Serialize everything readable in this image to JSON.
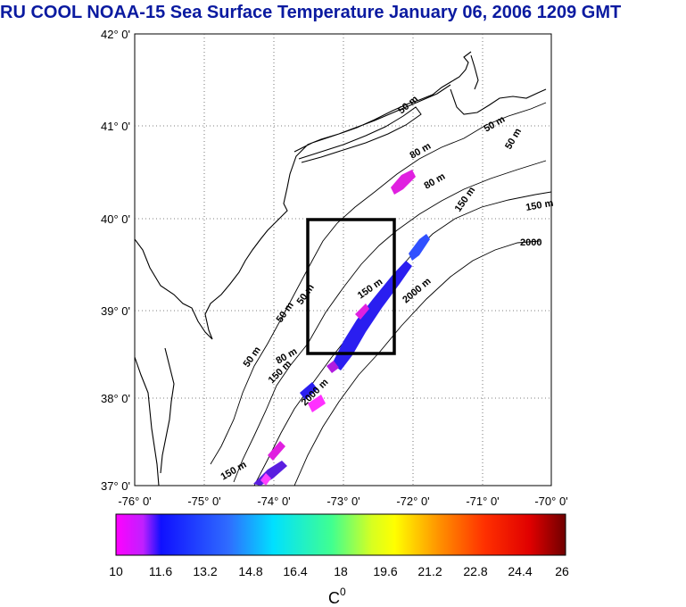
{
  "title": "RU COOL  NOAA-15 Sea Surface Temperature January 06, 2006 1209 GMT",
  "map": {
    "lat_labels": [
      "42° 0'",
      "41° 0'",
      "40° 0'",
      "39° 0'",
      "38° 0'",
      "37° 0'"
    ],
    "lon_labels": [
      "-76° 0'",
      "-75° 0'",
      "-74° 0'",
      "-73° 0'",
      "-72° 0'",
      "-71° 0'",
      "-70° 0'"
    ],
    "lat_range": [
      37,
      42
    ],
    "lon_range": [
      -76,
      -70
    ],
    "study_box": {
      "lon": [
        -73.5,
        -72.25
      ],
      "lat": [
        38.5,
        40.0
      ]
    },
    "contour_labels": [
      "50 m",
      "50 m",
      "50 m",
      "80 m",
      "150 m",
      "150 m",
      "2000",
      "80 m",
      "150 m",
      "2000 m",
      "50 m",
      "50 m",
      "50 m",
      "80 m",
      "150 m",
      "2000 m",
      "150 m"
    ]
  },
  "colorbar": {
    "ticks": [
      "10",
      "11.6",
      "13.2",
      "14.8",
      "16.4",
      "18",
      "19.6",
      "21.2",
      "22.8",
      "24.4",
      "26"
    ],
    "unit": "C",
    "unit_sup": "0",
    "min": 10,
    "max": 26
  }
}
